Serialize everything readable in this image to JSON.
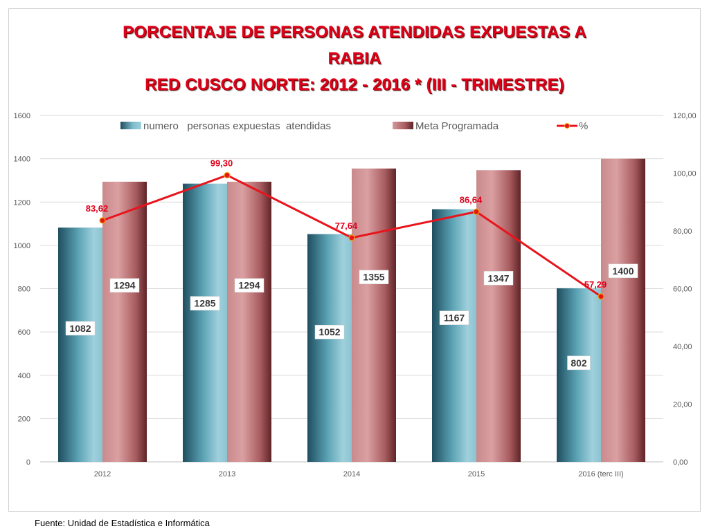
{
  "title": {
    "line1": "PORCENTAJE DE PERSONAS ATENDIDAS EXPUESTAS A",
    "line2": "RABIA",
    "line3": "RED CUSCO NORTE: 2012 - 2016 * (III - TRIMESTRE)"
  },
  "source": "Fuente: Unidad de Estadística e Informática",
  "colors": {
    "title": "#e1001a",
    "series_atendidas": "#4a96a8",
    "series_meta": "#b86a6c",
    "series_pct": "#e8141c"
  },
  "chart_data": {
    "type": "bar",
    "categories": [
      "2012",
      "2013",
      "2014",
      "2015",
      "2016 (terc III)"
    ],
    "series": [
      {
        "name": "numero   personas expuestas  atendidas",
        "type": "bar",
        "axis": "left",
        "values": [
          1082,
          1285,
          1052,
          1167,
          802
        ],
        "labels": [
          "1082",
          "1285",
          "1052",
          "1167",
          "802"
        ]
      },
      {
        "name": "Meta Programada",
        "type": "bar",
        "axis": "left",
        "values": [
          1294,
          1294,
          1355,
          1347,
          1400
        ],
        "labels": [
          "1294",
          "1294",
          "1355",
          "1347",
          "1400"
        ]
      },
      {
        "name": "%",
        "type": "line",
        "axis": "right",
        "values": [
          83.62,
          99.3,
          77.64,
          86.64,
          57.29
        ],
        "labels": [
          "83,62",
          "99,30",
          "77,64",
          "86,64",
          "57,29"
        ]
      }
    ],
    "ylim": [
      0,
      1600
    ],
    "y_ticks": [
      "0",
      "200",
      "400",
      "600",
      "800",
      "1000",
      "1200",
      "1400",
      "1600"
    ],
    "y2lim": [
      0,
      120
    ],
    "y2_ticks": [
      "0,00",
      "20,00",
      "40,00",
      "60,00",
      "80,00",
      "100,00",
      "120,00"
    ],
    "grid": true,
    "legend_position": "top"
  }
}
